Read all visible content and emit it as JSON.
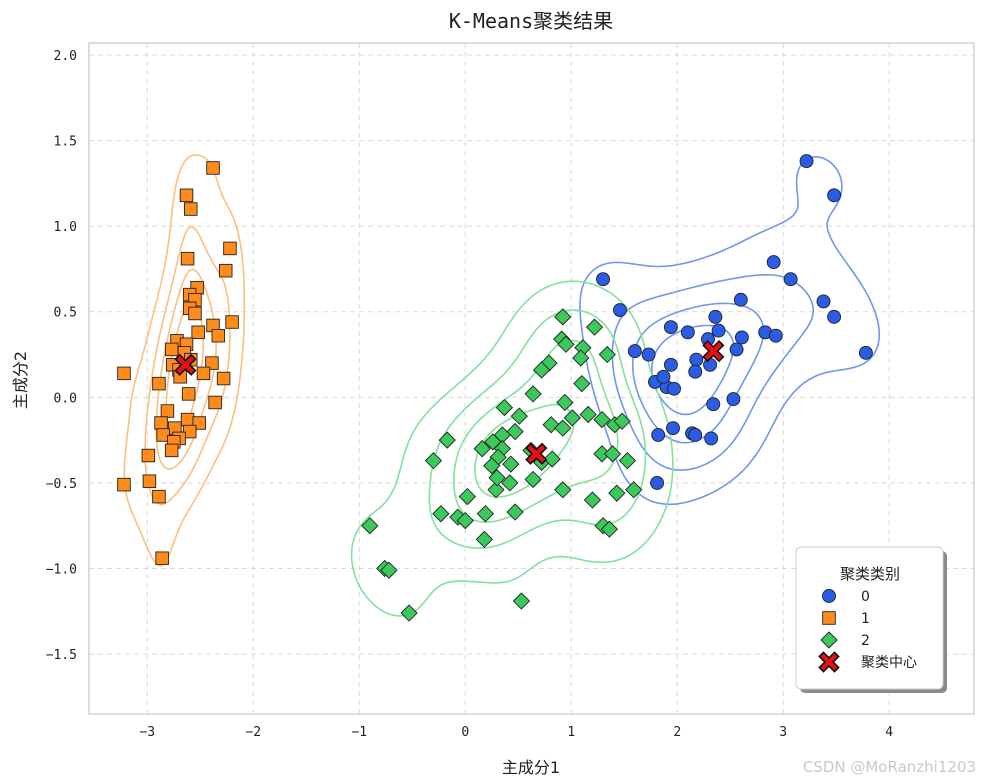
{
  "chart_data": {
    "type": "scatter",
    "title": "K-Means聚类结果",
    "xlabel": "主成分1",
    "ylabel": "主成分2",
    "xlim": [
      -3.55,
      4.8
    ],
    "ylim": [
      -1.85,
      2.07
    ],
    "xticks": [
      -3,
      -2,
      -1,
      0,
      1,
      2,
      3,
      4
    ],
    "xtick_labels": [
      "−3",
      "−2",
      "−1",
      "0",
      "1",
      "2",
      "3",
      "4"
    ],
    "yticks": [
      2.0,
      1.5,
      1.0,
      0.5,
      0.0,
      -0.5,
      -1.0,
      -1.5
    ],
    "ytick_labels": [
      "2.0",
      "1.5",
      "1.0",
      "0.5",
      "0.0",
      "−0.5",
      "−1.0",
      "−1.5"
    ],
    "grid": true,
    "legend": {
      "title": "聚类类别",
      "placement": "lower-right",
      "entries": [
        {
          "label": "0",
          "marker": "circle",
          "color": "#2a5ce6"
        },
        {
          "label": "1",
          "marker": "square",
          "color": "#ff8c1a"
        },
        {
          "label": "2",
          "marker": "diamond",
          "color": "#3ac95a"
        },
        {
          "label": "聚类中心",
          "marker": "x",
          "color": "#e81010"
        }
      ]
    },
    "series": [
      {
        "name": "0",
        "marker": "circle",
        "color": "#2a5ce6",
        "contour_color": "#7196ee",
        "points": [
          [
            3.22,
            1.38
          ],
          [
            3.48,
            1.18
          ],
          [
            2.91,
            0.79
          ],
          [
            3.07,
            0.69
          ],
          [
            3.38,
            0.56
          ],
          [
            3.48,
            0.47
          ],
          [
            3.78,
            0.26
          ],
          [
            2.6,
            0.57
          ],
          [
            2.36,
            0.47
          ],
          [
            2.39,
            0.39
          ],
          [
            2.29,
            0.34
          ],
          [
            2.61,
            0.35
          ],
          [
            2.83,
            0.38
          ],
          [
            2.93,
            0.36
          ],
          [
            2.56,
            0.28
          ],
          [
            2.18,
            0.22
          ],
          [
            2.31,
            0.19
          ],
          [
            1.3,
            0.69
          ],
          [
            1.46,
            0.51
          ],
          [
            1.94,
            0.41
          ],
          [
            2.1,
            0.38
          ],
          [
            1.6,
            0.27
          ],
          [
            1.73,
            0.25
          ],
          [
            1.94,
            0.19
          ],
          [
            2.17,
            0.15
          ],
          [
            1.79,
            0.09
          ],
          [
            1.9,
            0.06
          ],
          [
            1.87,
            0.12
          ],
          [
            1.97,
            0.05
          ],
          [
            2.34,
            -0.04
          ],
          [
            2.53,
            -0.01
          ],
          [
            1.96,
            -0.18
          ],
          [
            2.14,
            -0.21
          ],
          [
            2.17,
            -0.22
          ],
          [
            2.32,
            -0.24
          ],
          [
            1.82,
            -0.22
          ],
          [
            1.81,
            -0.5
          ]
        ]
      },
      {
        "name": "1",
        "marker": "square",
        "color": "#ff8c1a",
        "contour_color": "#fbbf82",
        "points": [
          [
            -2.38,
            1.34
          ],
          [
            -2.63,
            1.18
          ],
          [
            -2.59,
            1.1
          ],
          [
            -2.62,
            0.81
          ],
          [
            -2.22,
            0.87
          ],
          [
            -2.26,
            0.74
          ],
          [
            -2.53,
            0.64
          ],
          [
            -2.6,
            0.6
          ],
          [
            -2.55,
            0.57
          ],
          [
            -2.6,
            0.52
          ],
          [
            -2.55,
            0.49
          ],
          [
            -2.2,
            0.44
          ],
          [
            -2.38,
            0.42
          ],
          [
            -2.52,
            0.38
          ],
          [
            -2.33,
            0.36
          ],
          [
            -2.72,
            0.33
          ],
          [
            -2.63,
            0.31
          ],
          [
            -2.77,
            0.28
          ],
          [
            -2.65,
            0.26
          ],
          [
            -2.59,
            0.22
          ],
          [
            -2.39,
            0.2
          ],
          [
            -2.76,
            0.19
          ],
          [
            -2.7,
            0.16
          ],
          [
            -2.47,
            0.14
          ],
          [
            -3.22,
            0.14
          ],
          [
            -2.69,
            0.12
          ],
          [
            -2.28,
            0.11
          ],
          [
            -2.89,
            0.08
          ],
          [
            -2.61,
            0.02
          ],
          [
            -2.36,
            -0.03
          ],
          [
            -2.81,
            -0.08
          ],
          [
            -2.62,
            -0.13
          ],
          [
            -2.87,
            -0.15
          ],
          [
            -2.51,
            -0.15
          ],
          [
            -2.74,
            -0.18
          ],
          [
            -2.6,
            -0.2
          ],
          [
            -2.85,
            -0.22
          ],
          [
            -2.7,
            -0.24
          ],
          [
            -2.75,
            -0.26
          ],
          [
            -2.77,
            -0.31
          ],
          [
            -2.99,
            -0.34
          ],
          [
            -3.22,
            -0.51
          ],
          [
            -2.98,
            -0.49
          ],
          [
            -2.89,
            -0.58
          ],
          [
            -2.86,
            -0.94
          ]
        ]
      },
      {
        "name": "2",
        "marker": "diamond",
        "color": "#3ac95a",
        "contour_color": "#87df9d",
        "points": [
          [
            0.92,
            0.47
          ],
          [
            1.22,
            0.41
          ],
          [
            0.91,
            0.34
          ],
          [
            0.95,
            0.31
          ],
          [
            1.11,
            0.29
          ],
          [
            1.09,
            0.23
          ],
          [
            1.34,
            0.25
          ],
          [
            0.79,
            0.2
          ],
          [
            0.72,
            0.16
          ],
          [
            1.1,
            0.08
          ],
          [
            0.64,
            0.02
          ],
          [
            0.37,
            -0.06
          ],
          [
            0.94,
            -0.03
          ],
          [
            0.51,
            -0.11
          ],
          [
            1.01,
            -0.12
          ],
          [
            1.16,
            -0.1
          ],
          [
            0.81,
            -0.16
          ],
          [
            0.92,
            -0.18
          ],
          [
            1.29,
            -0.13
          ],
          [
            1.41,
            -0.16
          ],
          [
            1.48,
            -0.14
          ],
          [
            -0.17,
            -0.25
          ],
          [
            0.47,
            -0.2
          ],
          [
            0.35,
            -0.22
          ],
          [
            0.26,
            -0.26
          ],
          [
            0.35,
            -0.3
          ],
          [
            0.16,
            -0.3
          ],
          [
            0.62,
            -0.31
          ],
          [
            1.29,
            -0.33
          ],
          [
            0.31,
            -0.35
          ],
          [
            0.25,
            -0.4
          ],
          [
            0.43,
            -0.39
          ],
          [
            0.72,
            -0.38
          ],
          [
            0.82,
            -0.36
          ],
          [
            1.39,
            -0.33
          ],
          [
            1.53,
            -0.37
          ],
          [
            -0.3,
            -0.37
          ],
          [
            0.64,
            -0.48
          ],
          [
            0.42,
            -0.5
          ],
          [
            0.29,
            -0.54
          ],
          [
            0.92,
            -0.54
          ],
          [
            1.43,
            -0.56
          ],
          [
            1.59,
            -0.54
          ],
          [
            0.3,
            -0.47
          ],
          [
            -0.23,
            -0.68
          ],
          [
            -0.07,
            -0.7
          ],
          [
            0.0,
            -0.72
          ],
          [
            0.19,
            -0.68
          ],
          [
            0.47,
            -0.67
          ],
          [
            0.02,
            -0.58
          ],
          [
            1.2,
            -0.6
          ],
          [
            1.3,
            -0.75
          ],
          [
            1.36,
            -0.77
          ],
          [
            -0.9,
            -0.75
          ],
          [
            0.18,
            -0.83
          ],
          [
            -0.76,
            -1.0
          ],
          [
            -0.72,
            -1.01
          ],
          [
            -0.53,
            -1.26
          ],
          [
            0.53,
            -1.19
          ]
        ]
      }
    ],
    "centers": [
      [
        2.34,
        0.27
      ],
      [
        -2.64,
        0.19
      ],
      [
        0.67,
        -0.33
      ]
    ]
  },
  "watermark": "CSDN @MoRanzhi1203"
}
